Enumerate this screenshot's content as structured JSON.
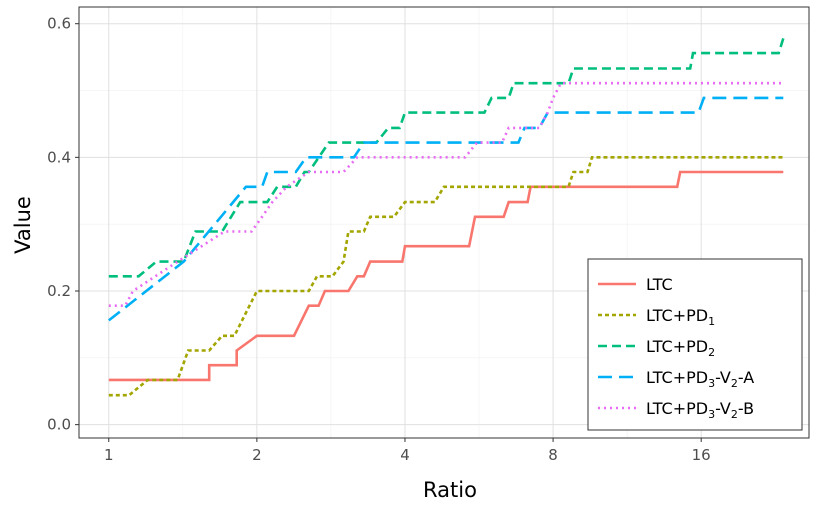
{
  "chart_data": {
    "type": "line",
    "xlabel": "Ratio",
    "ylabel": "Value",
    "x_scale": "log2",
    "xlim": [
      0.87,
      26.5
    ],
    "ylim": [
      -0.02,
      0.625
    ],
    "x_ticks": [
      1,
      2,
      4,
      8,
      16
    ],
    "x_tick_labels": [
      "1",
      "2",
      "4",
      "8",
      "16"
    ],
    "y_ticks": [
      0.0,
      0.2,
      0.4,
      0.6
    ],
    "y_tick_labels": [
      "0.0",
      "0.2",
      "0.4",
      "0.6"
    ],
    "grid": true,
    "legend_position": "bottom-right",
    "series": [
      {
        "name": "LTC",
        "name_base": "LTC",
        "name_sub": "",
        "name_suffix": "",
        "color": "#F8766D",
        "dash": "solid",
        "points": [
          [
            1,
            0.067
          ],
          [
            1.6,
            0.067
          ],
          [
            1.6,
            0.089
          ],
          [
            1.82,
            0.089
          ],
          [
            1.82,
            0.111
          ],
          [
            2.0,
            0.133
          ],
          [
            2.38,
            0.133
          ],
          [
            2.55,
            0.178
          ],
          [
            2.67,
            0.178
          ],
          [
            2.75,
            0.2
          ],
          [
            3.07,
            0.2
          ],
          [
            3.2,
            0.222
          ],
          [
            3.3,
            0.222
          ],
          [
            3.4,
            0.244
          ],
          [
            3.95,
            0.244
          ],
          [
            4.0,
            0.267
          ],
          [
            5.4,
            0.267
          ],
          [
            5.55,
            0.311
          ],
          [
            6.35,
            0.311
          ],
          [
            6.5,
            0.333
          ],
          [
            7.1,
            0.333
          ],
          [
            7.2,
            0.356
          ],
          [
            14.3,
            0.356
          ],
          [
            14.5,
            0.378
          ],
          [
            23.5,
            0.378
          ]
        ]
      },
      {
        "name": "LTC+PD1",
        "name_base": "LTC+PD",
        "name_sub": "1",
        "name_suffix": "",
        "color": "#A3A500",
        "dash": "4,3",
        "points": [
          [
            1,
            0.044
          ],
          [
            1.1,
            0.044
          ],
          [
            1.2,
            0.067
          ],
          [
            1.38,
            0.067
          ],
          [
            1.45,
            0.111
          ],
          [
            1.6,
            0.111
          ],
          [
            1.7,
            0.133
          ],
          [
            1.8,
            0.133
          ],
          [
            2.0,
            0.2
          ],
          [
            2.55,
            0.2
          ],
          [
            2.65,
            0.222
          ],
          [
            2.85,
            0.222
          ],
          [
            3.0,
            0.244
          ],
          [
            3.07,
            0.289
          ],
          [
            3.3,
            0.289
          ],
          [
            3.4,
            0.311
          ],
          [
            3.8,
            0.311
          ],
          [
            4.0,
            0.333
          ],
          [
            4.6,
            0.333
          ],
          [
            4.8,
            0.356
          ],
          [
            8.6,
            0.356
          ],
          [
            8.8,
            0.378
          ],
          [
            9.4,
            0.378
          ],
          [
            9.6,
            0.4
          ],
          [
            23.5,
            0.4
          ]
        ]
      },
      {
        "name": "LTC+PD2",
        "name_base": "LTC+PD",
        "name_sub": "2",
        "name_suffix": "",
        "color": "#00BF7D",
        "dash": "9,5",
        "points": [
          [
            1,
            0.222
          ],
          [
            1.15,
            0.222
          ],
          [
            1.25,
            0.244
          ],
          [
            1.42,
            0.244
          ],
          [
            1.5,
            0.289
          ],
          [
            1.7,
            0.289
          ],
          [
            1.85,
            0.333
          ],
          [
            2.1,
            0.333
          ],
          [
            2.2,
            0.356
          ],
          [
            2.4,
            0.356
          ],
          [
            2.5,
            0.378
          ],
          [
            2.55,
            0.378
          ],
          [
            2.8,
            0.422
          ],
          [
            3.5,
            0.422
          ],
          [
            3.7,
            0.444
          ],
          [
            3.9,
            0.444
          ],
          [
            4.0,
            0.467
          ],
          [
            5.8,
            0.467
          ],
          [
            6.0,
            0.489
          ],
          [
            6.5,
            0.489
          ],
          [
            6.65,
            0.511
          ],
          [
            8.6,
            0.511
          ],
          [
            8.8,
            0.533
          ],
          [
            15.2,
            0.533
          ],
          [
            15.4,
            0.556
          ],
          [
            23,
            0.556
          ],
          [
            23.5,
            0.578
          ]
        ]
      },
      {
        "name": "LTC+PD3-V2-A",
        "name_base": "LTC+PD",
        "name_sub": "3",
        "name_suffix": "-V",
        "name_sub2": "2",
        "name_suffix2": "-A",
        "color": "#00B0F6",
        "dash": "14,7",
        "points": [
          [
            1,
            0.156
          ],
          [
            1.42,
            0.244
          ],
          [
            1.9,
            0.356
          ],
          [
            2.05,
            0.356
          ],
          [
            2.1,
            0.378
          ],
          [
            2.4,
            0.378
          ],
          [
            2.52,
            0.4
          ],
          [
            3.15,
            0.4
          ],
          [
            3.3,
            0.422
          ],
          [
            6.8,
            0.422
          ],
          [
            7.0,
            0.444
          ],
          [
            7.5,
            0.444
          ],
          [
            7.8,
            0.467
          ],
          [
            15.8,
            0.467
          ],
          [
            16.2,
            0.489
          ],
          [
            23.5,
            0.489
          ]
        ]
      },
      {
        "name": "LTC+PD3-V2-B",
        "name_base": "LTC+PD",
        "name_sub": "3",
        "name_suffix": "-V",
        "name_sub2": "2",
        "name_suffix2": "-B",
        "color": "#E76BF3",
        "dash": "2,4",
        "points": [
          [
            1,
            0.178
          ],
          [
            1.08,
            0.178
          ],
          [
            1.12,
            0.2
          ],
          [
            1.38,
            0.244
          ],
          [
            1.72,
            0.289
          ],
          [
            1.95,
            0.289
          ],
          [
            2.05,
            0.311
          ],
          [
            2.15,
            0.333
          ],
          [
            2.3,
            0.356
          ],
          [
            2.55,
            0.378
          ],
          [
            3.0,
            0.378
          ],
          [
            3.2,
            0.4
          ],
          [
            5.3,
            0.4
          ],
          [
            5.6,
            0.422
          ],
          [
            6.3,
            0.422
          ],
          [
            6.5,
            0.444
          ],
          [
            7.5,
            0.444
          ],
          [
            7.8,
            0.467
          ],
          [
            8.0,
            0.489
          ],
          [
            8.3,
            0.511
          ],
          [
            23.5,
            0.511
          ]
        ]
      }
    ]
  }
}
